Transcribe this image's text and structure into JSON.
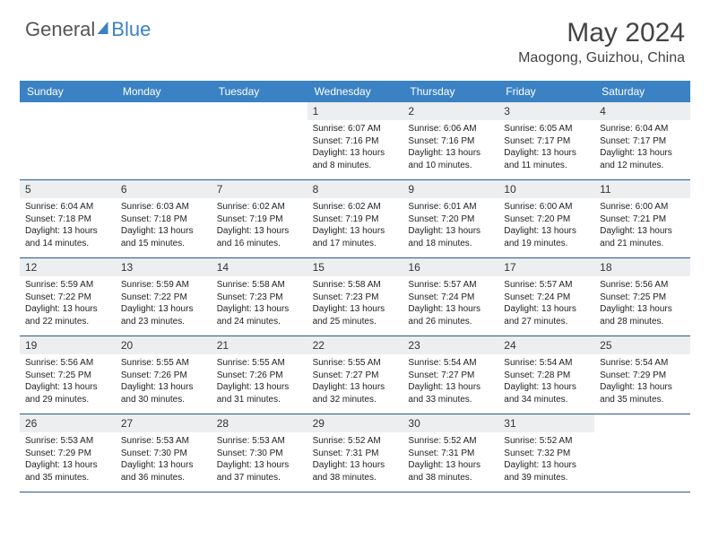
{
  "brand": {
    "part1": "General",
    "part2": "Blue"
  },
  "title": "May 2024",
  "location": "Maogong, Guizhou, China",
  "colors": {
    "header_bg": "#3b82c4",
    "daynum_bg": "#eceef0",
    "week_border": "#2a5a8a",
    "text": "#222222",
    "title_color": "#444444"
  },
  "dayNames": [
    "Sunday",
    "Monday",
    "Tuesday",
    "Wednesday",
    "Thursday",
    "Friday",
    "Saturday"
  ],
  "weeks": [
    [
      {
        "n": "",
        "sr": "",
        "ss": "",
        "dl": ""
      },
      {
        "n": "",
        "sr": "",
        "ss": "",
        "dl": ""
      },
      {
        "n": "",
        "sr": "",
        "ss": "",
        "dl": ""
      },
      {
        "n": "1",
        "sr": "Sunrise: 6:07 AM",
        "ss": "Sunset: 7:16 PM",
        "dl": "Daylight: 13 hours and 8 minutes."
      },
      {
        "n": "2",
        "sr": "Sunrise: 6:06 AM",
        "ss": "Sunset: 7:16 PM",
        "dl": "Daylight: 13 hours and 10 minutes."
      },
      {
        "n": "3",
        "sr": "Sunrise: 6:05 AM",
        "ss": "Sunset: 7:17 PM",
        "dl": "Daylight: 13 hours and 11 minutes."
      },
      {
        "n": "4",
        "sr": "Sunrise: 6:04 AM",
        "ss": "Sunset: 7:17 PM",
        "dl": "Daylight: 13 hours and 12 minutes."
      }
    ],
    [
      {
        "n": "5",
        "sr": "Sunrise: 6:04 AM",
        "ss": "Sunset: 7:18 PM",
        "dl": "Daylight: 13 hours and 14 minutes."
      },
      {
        "n": "6",
        "sr": "Sunrise: 6:03 AM",
        "ss": "Sunset: 7:18 PM",
        "dl": "Daylight: 13 hours and 15 minutes."
      },
      {
        "n": "7",
        "sr": "Sunrise: 6:02 AM",
        "ss": "Sunset: 7:19 PM",
        "dl": "Daylight: 13 hours and 16 minutes."
      },
      {
        "n": "8",
        "sr": "Sunrise: 6:02 AM",
        "ss": "Sunset: 7:19 PM",
        "dl": "Daylight: 13 hours and 17 minutes."
      },
      {
        "n": "9",
        "sr": "Sunrise: 6:01 AM",
        "ss": "Sunset: 7:20 PM",
        "dl": "Daylight: 13 hours and 18 minutes."
      },
      {
        "n": "10",
        "sr": "Sunrise: 6:00 AM",
        "ss": "Sunset: 7:20 PM",
        "dl": "Daylight: 13 hours and 19 minutes."
      },
      {
        "n": "11",
        "sr": "Sunrise: 6:00 AM",
        "ss": "Sunset: 7:21 PM",
        "dl": "Daylight: 13 hours and 21 minutes."
      }
    ],
    [
      {
        "n": "12",
        "sr": "Sunrise: 5:59 AM",
        "ss": "Sunset: 7:22 PM",
        "dl": "Daylight: 13 hours and 22 minutes."
      },
      {
        "n": "13",
        "sr": "Sunrise: 5:59 AM",
        "ss": "Sunset: 7:22 PM",
        "dl": "Daylight: 13 hours and 23 minutes."
      },
      {
        "n": "14",
        "sr": "Sunrise: 5:58 AM",
        "ss": "Sunset: 7:23 PM",
        "dl": "Daylight: 13 hours and 24 minutes."
      },
      {
        "n": "15",
        "sr": "Sunrise: 5:58 AM",
        "ss": "Sunset: 7:23 PM",
        "dl": "Daylight: 13 hours and 25 minutes."
      },
      {
        "n": "16",
        "sr": "Sunrise: 5:57 AM",
        "ss": "Sunset: 7:24 PM",
        "dl": "Daylight: 13 hours and 26 minutes."
      },
      {
        "n": "17",
        "sr": "Sunrise: 5:57 AM",
        "ss": "Sunset: 7:24 PM",
        "dl": "Daylight: 13 hours and 27 minutes."
      },
      {
        "n": "18",
        "sr": "Sunrise: 5:56 AM",
        "ss": "Sunset: 7:25 PM",
        "dl": "Daylight: 13 hours and 28 minutes."
      }
    ],
    [
      {
        "n": "19",
        "sr": "Sunrise: 5:56 AM",
        "ss": "Sunset: 7:25 PM",
        "dl": "Daylight: 13 hours and 29 minutes."
      },
      {
        "n": "20",
        "sr": "Sunrise: 5:55 AM",
        "ss": "Sunset: 7:26 PM",
        "dl": "Daylight: 13 hours and 30 minutes."
      },
      {
        "n": "21",
        "sr": "Sunrise: 5:55 AM",
        "ss": "Sunset: 7:26 PM",
        "dl": "Daylight: 13 hours and 31 minutes."
      },
      {
        "n": "22",
        "sr": "Sunrise: 5:55 AM",
        "ss": "Sunset: 7:27 PM",
        "dl": "Daylight: 13 hours and 32 minutes."
      },
      {
        "n": "23",
        "sr": "Sunrise: 5:54 AM",
        "ss": "Sunset: 7:27 PM",
        "dl": "Daylight: 13 hours and 33 minutes."
      },
      {
        "n": "24",
        "sr": "Sunrise: 5:54 AM",
        "ss": "Sunset: 7:28 PM",
        "dl": "Daylight: 13 hours and 34 minutes."
      },
      {
        "n": "25",
        "sr": "Sunrise: 5:54 AM",
        "ss": "Sunset: 7:29 PM",
        "dl": "Daylight: 13 hours and 35 minutes."
      }
    ],
    [
      {
        "n": "26",
        "sr": "Sunrise: 5:53 AM",
        "ss": "Sunset: 7:29 PM",
        "dl": "Daylight: 13 hours and 35 minutes."
      },
      {
        "n": "27",
        "sr": "Sunrise: 5:53 AM",
        "ss": "Sunset: 7:30 PM",
        "dl": "Daylight: 13 hours and 36 minutes."
      },
      {
        "n": "28",
        "sr": "Sunrise: 5:53 AM",
        "ss": "Sunset: 7:30 PM",
        "dl": "Daylight: 13 hours and 37 minutes."
      },
      {
        "n": "29",
        "sr": "Sunrise: 5:52 AM",
        "ss": "Sunset: 7:31 PM",
        "dl": "Daylight: 13 hours and 38 minutes."
      },
      {
        "n": "30",
        "sr": "Sunrise: 5:52 AM",
        "ss": "Sunset: 7:31 PM",
        "dl": "Daylight: 13 hours and 38 minutes."
      },
      {
        "n": "31",
        "sr": "Sunrise: 5:52 AM",
        "ss": "Sunset: 7:32 PM",
        "dl": "Daylight: 13 hours and 39 minutes."
      },
      {
        "n": "",
        "sr": "",
        "ss": "",
        "dl": ""
      }
    ]
  ]
}
